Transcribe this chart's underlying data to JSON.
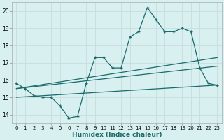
{
  "xlabel": "Humidex (Indice chaleur)",
  "background_color": "#d8f0f0",
  "grid_color": "#c8dede",
  "line_color": "#1a6b6b",
  "xlim": [
    -0.5,
    23.5
  ],
  "ylim": [
    13.5,
    20.5
  ],
  "yticks": [
    14,
    15,
    16,
    17,
    18,
    19,
    20
  ],
  "xticks": [
    0,
    1,
    2,
    3,
    4,
    5,
    6,
    7,
    8,
    9,
    10,
    11,
    12,
    13,
    14,
    15,
    16,
    17,
    18,
    19,
    20,
    21,
    22,
    23
  ],
  "line1_x": [
    0,
    1,
    2,
    3,
    4,
    5,
    6,
    7,
    8,
    9,
    10,
    11,
    12,
    13,
    14,
    15,
    16,
    17,
    18,
    19,
    20,
    21,
    22,
    23
  ],
  "line1_y": [
    15.8,
    15.5,
    15.1,
    15.0,
    15.0,
    14.5,
    13.8,
    13.9,
    15.8,
    17.3,
    17.3,
    16.7,
    16.7,
    18.5,
    18.8,
    20.2,
    19.5,
    18.8,
    18.8,
    19.0,
    18.8,
    16.7,
    15.8,
    15.7
  ],
  "line2_x": [
    0,
    23
  ],
  "line2_y": [
    15.5,
    16.8
  ],
  "line3_x": [
    0,
    23
  ],
  "line3_y": [
    15.5,
    17.3
  ],
  "line4_x": [
    0,
    23
  ],
  "line4_y": [
    15.0,
    15.7
  ]
}
